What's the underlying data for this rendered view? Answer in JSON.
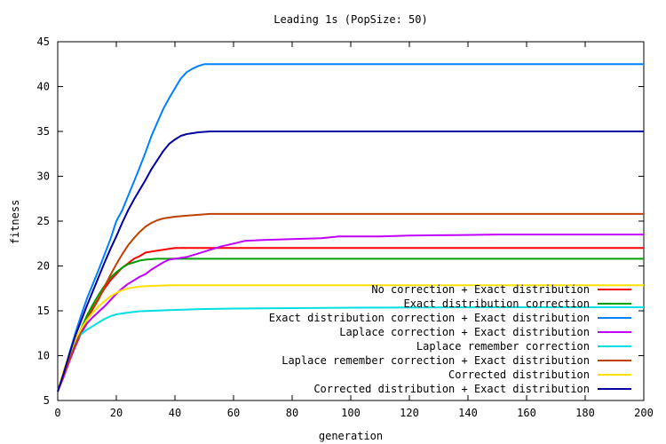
{
  "chart_data": {
    "type": "line",
    "title": "Leading 1s (PopSize: 50)",
    "xlabel": "generation",
    "ylabel": "fitness",
    "xlim": [
      0,
      200
    ],
    "ylim": [
      5,
      45
    ],
    "xticks": [
      0,
      20,
      40,
      60,
      80,
      100,
      120,
      140,
      160,
      180,
      200
    ],
    "yticks": [
      5,
      10,
      15,
      20,
      25,
      30,
      35,
      40,
      45
    ],
    "grid": false,
    "legend_position": "bottom-right",
    "series": [
      {
        "name": "No correction + Exact distribution",
        "color": "#ff0000",
        "x": [
          0,
          2,
          4,
          6,
          8,
          10,
          12,
          14,
          16,
          18,
          20,
          22,
          24,
          26,
          28,
          30,
          32,
          34,
          36,
          38,
          40,
          200
        ],
        "y": [
          6,
          7.8,
          9.8,
          11.3,
          12.8,
          14.2,
          15.3,
          16.4,
          17.5,
          18.4,
          19.1,
          19.8,
          20.3,
          20.8,
          21.1,
          21.5,
          21.6,
          21.7,
          21.8,
          21.9,
          22.0,
          22.0
        ]
      },
      {
        "name": "Exact distribution correction",
        "color": "#00a000",
        "x": [
          0,
          2,
          4,
          6,
          8,
          10,
          12,
          14,
          16,
          18,
          20,
          22,
          24,
          26,
          28,
          30,
          32,
          34,
          36,
          200
        ],
        "y": [
          6,
          7.8,
          9.9,
          11.5,
          13.0,
          14.5,
          15.7,
          16.8,
          17.8,
          18.7,
          19.3,
          19.8,
          20.2,
          20.4,
          20.6,
          20.7,
          20.75,
          20.8,
          20.8,
          20.8
        ]
      },
      {
        "name": "Exact distribution correction + Exact distribution",
        "color": "#0080ff",
        "x": [
          0,
          2,
          4,
          6,
          8,
          10,
          12,
          14,
          16,
          18,
          20,
          22,
          24,
          26,
          28,
          30,
          32,
          34,
          36,
          38,
          40,
          42,
          44,
          46,
          48,
          50,
          52,
          200
        ],
        "y": [
          6,
          8,
          10.3,
          12.5,
          14.5,
          16.4,
          18.0,
          19.6,
          21.3,
          23.0,
          25.0,
          26.2,
          27.8,
          29.4,
          31.0,
          32.7,
          34.5,
          36.0,
          37.5,
          38.7,
          39.8,
          40.9,
          41.6,
          42.0,
          42.3,
          42.5,
          42.5,
          42.5
        ]
      },
      {
        "name": "Laplace correction + Exact distribution",
        "color": "#c000ff",
        "x": [
          0,
          2,
          4,
          6,
          8,
          10,
          12,
          14,
          16,
          18,
          20,
          22,
          24,
          26,
          28,
          30,
          32,
          34,
          36,
          38,
          40,
          44,
          48,
          52,
          56,
          60,
          64,
          70,
          80,
          90,
          96,
          110,
          120,
          136,
          150,
          200
        ],
        "y": [
          6,
          7.6,
          9.4,
          11.0,
          12.5,
          13.6,
          14.3,
          14.9,
          15.5,
          16.2,
          16.9,
          17.5,
          18.0,
          18.4,
          18.8,
          19.1,
          19.6,
          20.0,
          20.4,
          20.7,
          20.8,
          21.0,
          21.4,
          21.8,
          22.2,
          22.5,
          22.8,
          22.9,
          23.0,
          23.1,
          23.3,
          23.3,
          23.4,
          23.45,
          23.5,
          23.5
        ]
      },
      {
        "name": "Laplace remember correction",
        "color": "#00e0e0",
        "x": [
          0,
          2,
          4,
          6,
          8,
          10,
          12,
          14,
          16,
          18,
          20,
          24,
          28,
          32,
          36,
          40,
          50,
          60,
          80,
          100,
          150,
          200
        ],
        "y": [
          6,
          8.0,
          10.0,
          11.5,
          12.4,
          12.9,
          13.3,
          13.7,
          14.1,
          14.4,
          14.6,
          14.8,
          14.95,
          15.0,
          15.05,
          15.1,
          15.2,
          15.25,
          15.3,
          15.35,
          15.4,
          15.4
        ]
      },
      {
        "name": "Laplace remember correction + Exact distribution",
        "color": "#c04000",
        "x": [
          0,
          2,
          4,
          6,
          8,
          10,
          12,
          14,
          16,
          18,
          20,
          22,
          24,
          26,
          28,
          30,
          32,
          34,
          36,
          40,
          44,
          48,
          52,
          200
        ],
        "y": [
          6,
          7.8,
          9.6,
          11.2,
          12.7,
          14.0,
          15.2,
          16.3,
          17.7,
          19.0,
          20.2,
          21.3,
          22.3,
          23.1,
          23.8,
          24.4,
          24.8,
          25.1,
          25.3,
          25.5,
          25.6,
          25.7,
          25.8,
          25.8
        ]
      },
      {
        "name": "Corrected distribution",
        "color": "#ffe000",
        "x": [
          0,
          2,
          4,
          6,
          8,
          10,
          12,
          14,
          16,
          18,
          20,
          22,
          24,
          26,
          28,
          30,
          34,
          38,
          200
        ],
        "y": [
          6,
          8.3,
          10.2,
          11.8,
          13.0,
          14.0,
          14.8,
          15.5,
          16.1,
          16.6,
          17.0,
          17.3,
          17.5,
          17.6,
          17.7,
          17.75,
          17.8,
          17.85,
          17.85
        ]
      },
      {
        "name": "Corrected distribution + Exact distribution",
        "color": "#0000a0",
        "x": [
          0,
          2,
          4,
          6,
          8,
          10,
          12,
          14,
          16,
          18,
          20,
          22,
          24,
          26,
          28,
          30,
          32,
          34,
          36,
          38,
          40,
          42,
          44,
          46,
          48,
          50,
          52,
          200
        ],
        "y": [
          6,
          8.0,
          10.2,
          12.2,
          13.9,
          15.6,
          17.2,
          18.8,
          20.4,
          21.9,
          23.3,
          24.8,
          26.2,
          27.4,
          28.5,
          29.6,
          30.8,
          31.8,
          32.8,
          33.6,
          34.1,
          34.5,
          34.7,
          34.8,
          34.9,
          34.95,
          35.0,
          35.0
        ]
      }
    ]
  }
}
